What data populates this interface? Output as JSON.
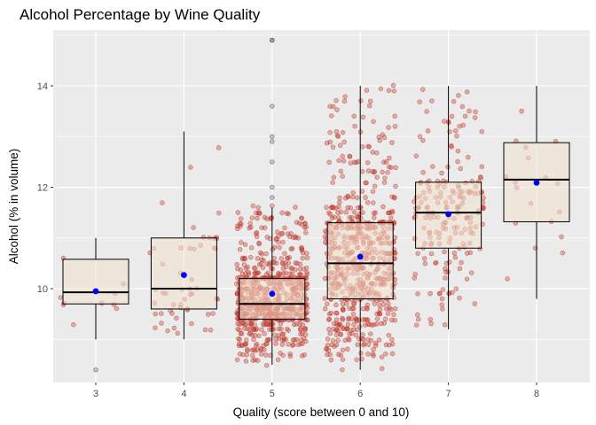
{
  "chart_data": {
    "type": "boxplot",
    "title": "Alcohol Percentage by Wine Quality",
    "xlabel": "Quality (score between 0 and 10)",
    "ylabel": "Alcohol (% in volume)",
    "categories": [
      "3",
      "4",
      "5",
      "6",
      "7",
      "8"
    ],
    "y_ticks": [
      10,
      12,
      14
    ],
    "ylim": [
      8.15,
      15.1
    ],
    "grid": true,
    "boxes": [
      {
        "quality": "3",
        "min": 9.0,
        "q1": 9.7,
        "median": 9.93,
        "q3": 10.58,
        "max": 11.0,
        "mean": 9.95
      },
      {
        "quality": "4",
        "min": 9.0,
        "q1": 9.6,
        "median": 10.0,
        "q3": 11.0,
        "max": 13.1,
        "mean": 10.27
      },
      {
        "quality": "5",
        "min": 8.5,
        "q1": 9.4,
        "median": 9.7,
        "q3": 10.2,
        "max": 11.6,
        "mean": 9.9
      },
      {
        "quality": "6",
        "min": 8.4,
        "q1": 9.8,
        "median": 10.5,
        "q3": 11.3,
        "max": 14.0,
        "mean": 10.63
      },
      {
        "quality": "7",
        "min": 9.2,
        "q1": 10.8,
        "median": 11.5,
        "q3": 12.1,
        "max": 14.0,
        "mean": 11.47
      },
      {
        "quality": "8",
        "min": 9.8,
        "q1": 11.32,
        "median": 12.15,
        "q3": 12.88,
        "max": 14.0,
        "mean": 12.09
      }
    ],
    "outliers": [
      {
        "quality": "3",
        "values": [
          8.4
        ]
      },
      {
        "quality": "5",
        "values": [
          11.8,
          12.0,
          12.5,
          12.9,
          13.0,
          13.6,
          14.9,
          14.9
        ]
      }
    ],
    "jitter_counts": {
      "3": 10,
      "4": 53,
      "5": 681,
      "6": 638,
      "7": 199,
      "8": 18
    },
    "colors": {
      "panel": "#ebebeb",
      "grid": "#ffffff",
      "box_fill": "#f2e2cd",
      "points": "#c0392b",
      "mean": "#0000ff",
      "outline": "#000000"
    }
  }
}
